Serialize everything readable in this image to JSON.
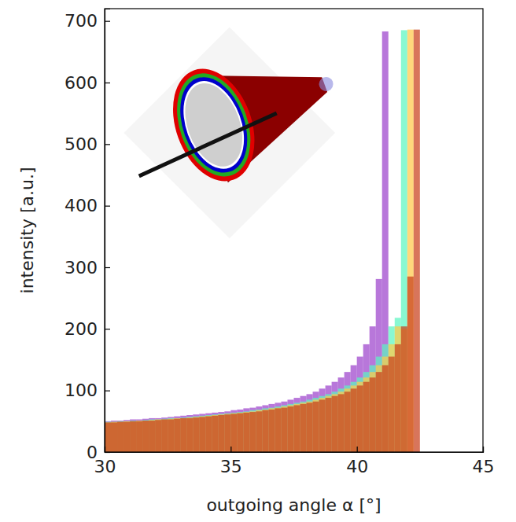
{
  "chart_data": {
    "type": "histogram",
    "x_label": "outgoing angle α [°]",
    "y_label": "intensity [a.u.]",
    "xlim": [
      30,
      45
    ],
    "ylim": [
      0,
      720
    ],
    "xticks": [
      30,
      35,
      40,
      45
    ],
    "yticks": [
      0,
      100,
      200,
      300,
      400,
      500,
      600,
      700
    ],
    "bins": [
      30,
      30.25,
      30.5,
      30.75,
      31,
      31.25,
      31.5,
      31.75,
      32,
      32.25,
      32.5,
      32.75,
      33,
      33.25,
      33.5,
      33.75,
      34,
      34.25,
      34.5,
      34.75,
      35,
      35.25,
      35.5,
      35.75,
      36,
      36.25,
      36.5,
      36.75,
      37,
      37.25,
      37.5,
      37.75,
      38,
      38.25,
      38.5,
      38.75,
      39,
      39.25,
      39.5,
      39.75,
      40,
      40.25,
      40.5,
      40.75,
      41,
      41.25,
      41.5,
      41.75,
      42,
      42.25,
      42.5
    ],
    "series": [
      {
        "color": "#9c42cc",
        "values": [
          50,
          51,
          51,
          52,
          53,
          53,
          54,
          55,
          55,
          56,
          57,
          58,
          59,
          60,
          61,
          62,
          63,
          64,
          65,
          66,
          68,
          69,
          71,
          72,
          74,
          76,
          78,
          80,
          82,
          85,
          88,
          91,
          94,
          98,
          103,
          108,
          114,
          121,
          130,
          141,
          155,
          175,
          204,
          281,
          683,
          0,
          0,
          0,
          0,
          0
        ]
      },
      {
        "color": "#5cf5c0",
        "values": [
          49,
          49,
          50,
          50,
          51,
          51,
          52,
          53,
          53,
          54,
          55,
          55,
          56,
          57,
          58,
          59,
          60,
          61,
          62,
          63,
          64,
          65,
          66,
          68,
          69,
          71,
          72,
          74,
          76,
          78,
          80,
          82,
          85,
          88,
          91,
          94,
          98,
          103,
          108,
          114,
          121,
          130,
          141,
          155,
          175,
          204,
          218,
          685,
          0,
          0
        ]
      },
      {
        "color": "#ffc94a",
        "values": [
          48,
          49,
          49,
          50,
          50,
          51,
          51,
          52,
          53,
          53,
          54,
          55,
          55,
          56,
          57,
          58,
          59,
          60,
          61,
          62,
          63,
          64,
          65,
          66,
          68,
          69,
          71,
          72,
          74,
          76,
          78,
          80,
          82,
          85,
          88,
          91,
          94,
          98,
          103,
          108,
          114,
          121,
          130,
          141,
          155,
          175,
          204,
          200,
          686,
          0
        ]
      },
      {
        "color": "#c9401c",
        "values": [
          48,
          48,
          49,
          49,
          50,
          50,
          51,
          51,
          52,
          53,
          53,
          54,
          55,
          55,
          56,
          57,
          58,
          59,
          60,
          61,
          62,
          63,
          64,
          65,
          66,
          68,
          69,
          71,
          72,
          74,
          76,
          78,
          80,
          82,
          85,
          88,
          91,
          94,
          98,
          103,
          108,
          114,
          121,
          130,
          141,
          155,
          175,
          204,
          285,
          686
        ]
      }
    ]
  }
}
